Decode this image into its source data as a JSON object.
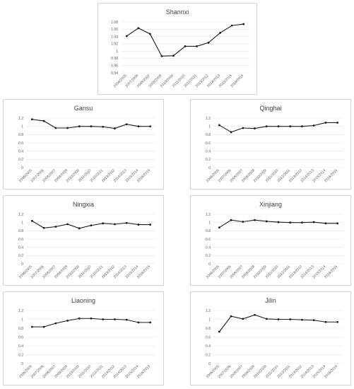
{
  "chart_data": [
    {
      "type": "line",
      "title": "Shannxi",
      "categories": [
        "2006/2005",
        "2007/2006",
        "2008/2007",
        "2009/2008",
        "2010/2009",
        "2011/2010",
        "2012/2011",
        "2013/2012",
        "2014/2013",
        "2015/2014",
        "2016/2015"
      ],
      "yticks": [
        "1.08",
        "1.06",
        "1.04",
        "1.02",
        "1",
        "0.98",
        "0.96",
        "0.94"
      ],
      "ylim": [
        0.94,
        1.08
      ],
      "grid": true,
      "values": [
        1.041,
        1.063,
        1.047,
        0.986,
        0.987,
        1.013,
        1.013,
        1.023,
        1.05,
        1.07,
        1.074
      ]
    },
    {
      "type": "line",
      "title": "Gansu",
      "categories": [
        "2006/2005",
        "2007/2006",
        "2008/2007",
        "2009/2008",
        "2010/2009",
        "2011/2010",
        "2012/2011",
        "2013/2012",
        "2014/2013",
        "2015/2014",
        "2016/2015"
      ],
      "yticks": [
        "1.2",
        "1",
        "0.8",
        "0.6",
        "0.4",
        "0.2",
        "0"
      ],
      "ylim": [
        0,
        1.2
      ],
      "grid": true,
      "values": [
        1.17,
        1.13,
        0.96,
        0.96,
        1.0,
        1.0,
        0.99,
        0.95,
        1.05,
        1.0,
        1.0
      ]
    },
    {
      "type": "line",
      "title": "Qinghai",
      "categories": [
        "2006/2005",
        "2007/2006",
        "2008/2007",
        "2009/2008",
        "2010/2009",
        "2011/2010",
        "2012/2011",
        "2013/2012",
        "2014/2013",
        "2015/2014",
        "2016/2015"
      ],
      "yticks": [
        "1.2",
        "1",
        "0.8",
        "0.6",
        "0.4",
        "0.2",
        "0"
      ],
      "ylim": [
        0,
        1.2
      ],
      "grid": true,
      "values": [
        1.03,
        0.86,
        0.96,
        0.95,
        1.0,
        1.0,
        1.0,
        1.0,
        1.02,
        1.09,
        1.09
      ]
    },
    {
      "type": "line",
      "title": "Ningxia",
      "categories": [
        "2006/2005",
        "2007/2006",
        "2008/2007",
        "2009/2008",
        "2010/2009",
        "2011/2010",
        "2012/2011",
        "2013/2012",
        "2014/2013",
        "2015/2014",
        "2016/2015"
      ],
      "yticks": [
        "1.2",
        "1",
        "0.8",
        "0.6",
        "0.4",
        "0.2",
        "0"
      ],
      "ylim": [
        0,
        1.2
      ],
      "grid": true,
      "values": [
        1.04,
        0.87,
        0.9,
        0.96,
        0.86,
        0.93,
        0.98,
        0.96,
        0.99,
        0.95,
        0.95
      ]
    },
    {
      "type": "line",
      "title": "Xinjiang",
      "categories": [
        "2006/2005",
        "2007/2006",
        "2008/2007",
        "2009/2008",
        "2010/2009",
        "2011/2010",
        "2012/2011",
        "2013/2012",
        "2014/2013",
        "2015/2014",
        "2016/2015"
      ],
      "yticks": [
        "1.2",
        "1",
        "0.8",
        "0.6",
        "0.4",
        "0.2",
        "0"
      ],
      "ylim": [
        0,
        1.2
      ],
      "grid": true,
      "values": [
        0.88,
        1.06,
        1.02,
        1.06,
        1.03,
        1.01,
        1.0,
        1.0,
        1.01,
        0.98,
        0.98
      ]
    },
    {
      "type": "line",
      "title": "Liaoning",
      "categories": [
        "2006/2005",
        "2007/2006",
        "2008/2007",
        "2009/2008",
        "2010/2009",
        "2011/2010",
        "2012/2011",
        "2013/2012",
        "2014/2013",
        "2015/2014",
        "2016/2015"
      ],
      "yticks": [
        "1.2",
        "1",
        "0.8",
        "0.6",
        "0.4",
        "0.2",
        "0"
      ],
      "ylim": [
        0,
        1.2
      ],
      "grid": true,
      "values": [
        0.83,
        0.83,
        0.91,
        0.97,
        1.02,
        1.02,
        1.0,
        1.0,
        0.99,
        0.93,
        0.93
      ]
    },
    {
      "type": "line",
      "title": "Jilin",
      "categories": [
        "2006/2005",
        "2007/2006",
        "2008/2007",
        "2009/2008",
        "2010/2009",
        "2011/2010",
        "2012/2011",
        "2013/2012",
        "2014/2013",
        "2015/2014",
        "2016/2015"
      ],
      "yticks": [
        "1.2",
        "1",
        "0.8",
        "0.6",
        "0.4",
        "0.2",
        "0"
      ],
      "ylim": [
        0,
        1.2
      ],
      "grid": true,
      "values": [
        0.72,
        1.07,
        1.01,
        1.1,
        1.01,
        1.0,
        1.0,
        0.99,
        0.98,
        0.94,
        0.94
      ]
    }
  ]
}
